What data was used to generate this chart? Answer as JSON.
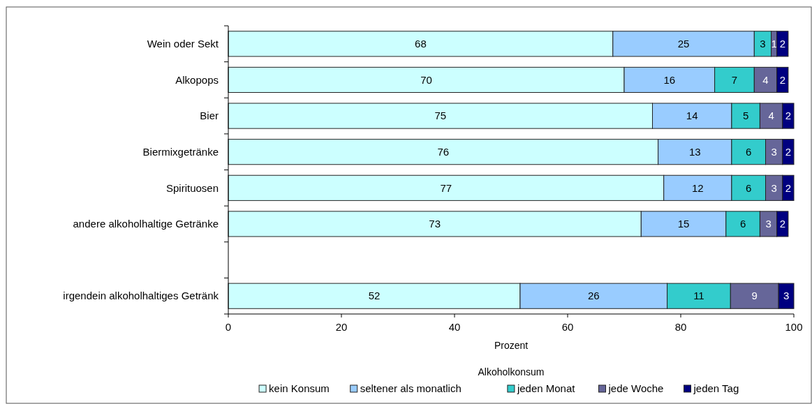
{
  "chart_data": {
    "type": "bar",
    "orientation": "horizontal",
    "stacked": true,
    "categories": [
      "Wein oder Sekt",
      "Alkopops",
      "Bier",
      "Biermixgetränke",
      "Spirituosen",
      "andere alkoholhaltige Getränke",
      null,
      "irgendein alkoholhaltiges Getränk"
    ],
    "series": [
      {
        "name": "kein Konsum",
        "color": "#ccffff",
        "values": [
          68,
          70,
          75,
          76,
          77,
          73,
          null,
          51.6
        ],
        "value_labels": [
          "68",
          "70",
          "75",
          "76",
          "77",
          "73",
          null,
          "52"
        ]
      },
      {
        "name": "seltener als monatlich",
        "color": "#99ccff",
        "values": [
          25,
          16,
          14,
          13,
          12,
          15,
          null,
          26
        ],
        "value_labels": [
          "25",
          "16",
          "14",
          "13",
          "12",
          "15",
          null,
          "26"
        ]
      },
      {
        "name": "jeden Monat",
        "color": "#33cccc",
        "values": [
          3,
          7,
          5,
          6,
          6,
          6,
          null,
          11.2
        ],
        "value_labels": [
          "3",
          "7",
          "5",
          "6",
          "6",
          "6",
          null,
          "11"
        ]
      },
      {
        "name": "jede Woche",
        "color": "#666699",
        "values": [
          1,
          4,
          4,
          3,
          3,
          3,
          null,
          8.5
        ],
        "value_labels": [
          "1",
          "4",
          "4",
          "3",
          "3",
          "3",
          null,
          "9"
        ]
      },
      {
        "name": "jeden Tag",
        "color": "#000080",
        "values": [
          2,
          2,
          2,
          2,
          2,
          2,
          null,
          2.7
        ],
        "value_labels": [
          "2",
          "2",
          "2",
          "2",
          "2",
          "2",
          null,
          "3"
        ]
      }
    ],
    "xlim": [
      0,
      100
    ],
    "xticks": [
      0,
      20,
      40,
      60,
      80,
      100
    ],
    "xlabel": "Prozent",
    "legend_title": "Alkoholkonsum",
    "legend": "bottom",
    "grid": false
  }
}
